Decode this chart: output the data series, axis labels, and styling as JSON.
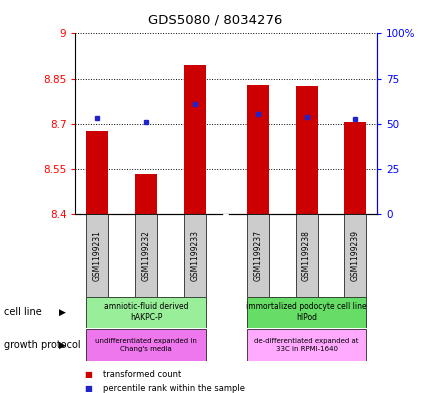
{
  "title": "GDS5080 / 8034276",
  "samples": [
    "GSM1199231",
    "GSM1199232",
    "GSM1199233",
    "GSM1199237",
    "GSM1199238",
    "GSM1199239"
  ],
  "bar_bottoms": [
    8.4,
    8.4,
    8.4,
    8.4,
    8.4,
    8.4
  ],
  "bar_tops": [
    8.675,
    8.535,
    8.895,
    8.83,
    8.825,
    8.705
  ],
  "percentile_values": [
    8.718,
    8.706,
    8.766,
    8.734,
    8.722,
    8.716
  ],
  "ylim_left": [
    8.4,
    9.0
  ],
  "ylim_right": [
    0,
    100
  ],
  "yticks_left": [
    8.4,
    8.55,
    8.7,
    8.85,
    9.0
  ],
  "yticks_right": [
    0,
    25,
    50,
    75,
    100
  ],
  "ytick_labels_left": [
    "8.4",
    "8.55",
    "8.7",
    "8.85",
    "9"
  ],
  "ytick_labels_right": [
    "0",
    "25",
    "50",
    "75",
    "100%"
  ],
  "bar_color": "#cc0000",
  "percentile_color": "#2222cc",
  "x_positions": [
    0,
    1,
    2,
    3.3,
    4.3,
    5.3
  ],
  "xlim": [
    -0.45,
    5.75
  ],
  "bar_width": 0.45,
  "cell_line_groups": [
    {
      "label": "amniotic-fluid derived\nhAKPC-P",
      "x_start_idx": 0,
      "x_end_idx": 2,
      "color": "#99ee99"
    },
    {
      "label": "immortalized podocyte cell line\nhIPod",
      "x_start_idx": 3,
      "x_end_idx": 5,
      "color": "#66dd66"
    }
  ],
  "growth_protocol_groups": [
    {
      "label": "undifferentiated expanded in\nChang's media",
      "x_start_idx": 0,
      "x_end_idx": 2,
      "color": "#ee77ee"
    },
    {
      "label": "de-differentiated expanded at\n33C in RPMI-1640",
      "x_start_idx": 3,
      "x_end_idx": 5,
      "color": "#ffaaff"
    }
  ],
  "cell_line_label": "cell line",
  "growth_protocol_label": "growth protocol",
  "legend_items": [
    {
      "label": "transformed count",
      "color": "#cc0000"
    },
    {
      "label": "percentile rank within the sample",
      "color": "#2222cc"
    }
  ],
  "sample_bg_color": "#cccccc",
  "title_fontsize": 9.5
}
